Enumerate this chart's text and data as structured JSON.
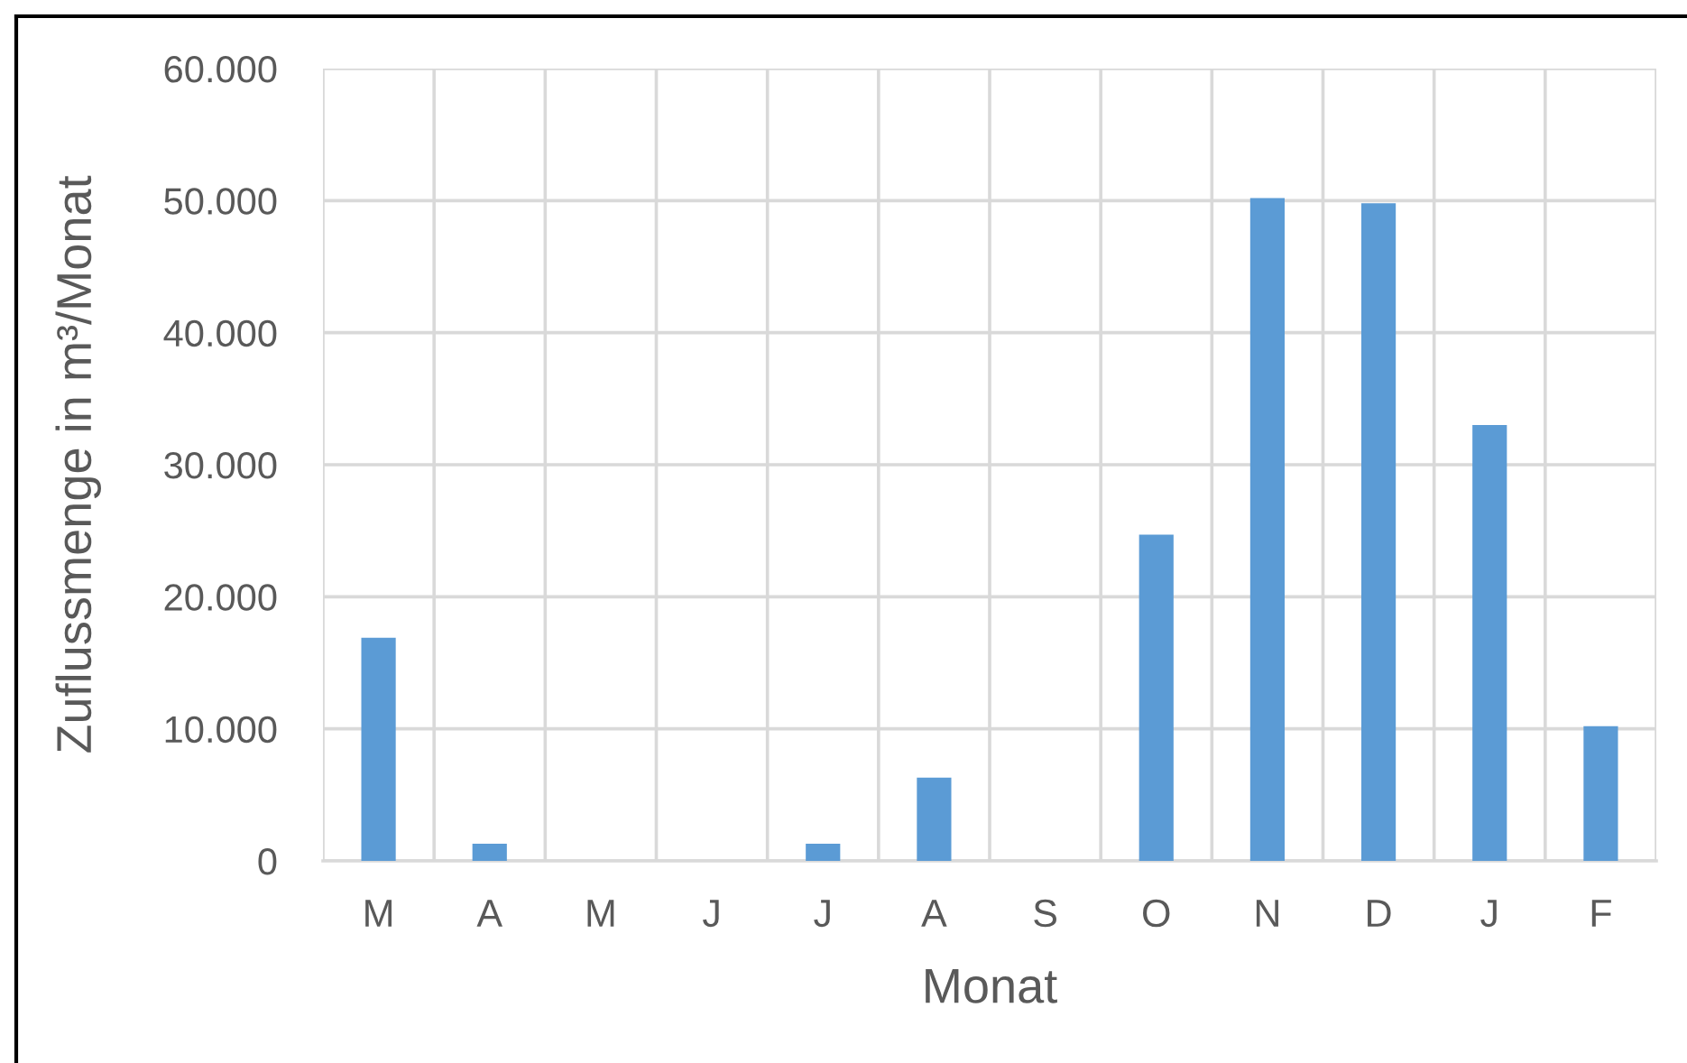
{
  "chart_data": {
    "type": "bar",
    "xlabel": "Monat",
    "ylabel": "Zuflussmenge in m³/Monat",
    "categories": [
      "M",
      "A",
      "M",
      "J",
      "J",
      "A",
      "S",
      "O",
      "N",
      "D",
      "J",
      "F"
    ],
    "values": [
      16900,
      1300,
      0,
      0,
      1300,
      6300,
      0,
      24700,
      50200,
      49800,
      33000,
      10200
    ],
    "color": "#5b9bd5",
    "ylim": [
      0,
      60000
    ],
    "yticks": [
      0,
      {
        "value": 10000,
        "label": "10.000"
      },
      {
        "value": 20000,
        "label": "20.000"
      },
      {
        "value": 30000,
        "label": "30.000"
      },
      {
        "value": 40000,
        "label": "40.000"
      },
      {
        "value": 50000,
        "label": "50.000"
      },
      {
        "value": 60000,
        "label": "60.000"
      }
    ],
    "grid": true
  }
}
